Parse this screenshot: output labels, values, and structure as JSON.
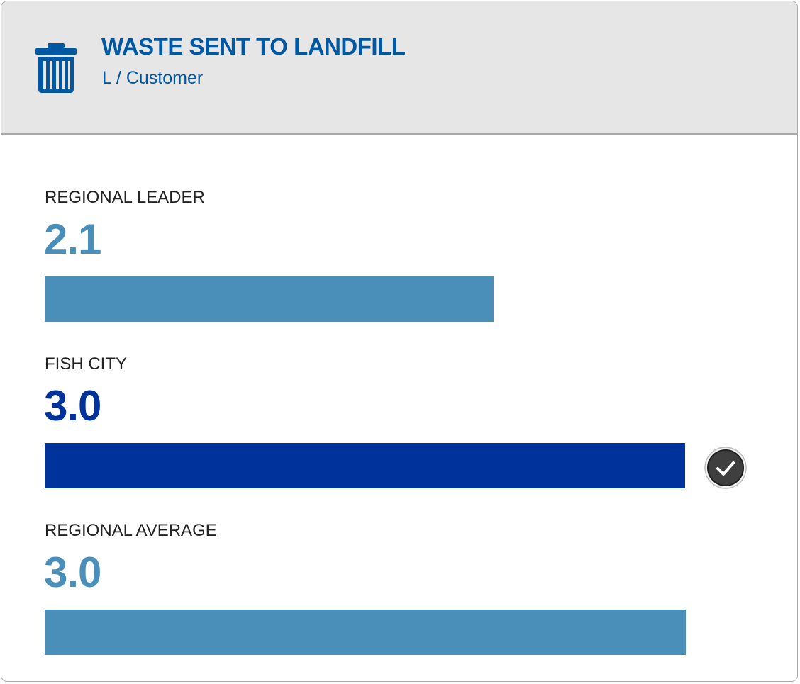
{
  "header": {
    "title": "WASTE SENT TO LANDFILL",
    "subtitle": "L / Customer",
    "icon": "trash-can-icon",
    "accent_color": "#0058a3"
  },
  "chart_data": {
    "type": "bar",
    "orientation": "horizontal",
    "title": "WASTE SENT TO LANDFILL",
    "unit": "L / Customer",
    "categories": [
      "REGIONAL LEADER",
      "FISH CITY",
      "REGIONAL AVERAGE"
    ],
    "values": [
      2.1,
      3.0,
      3.0
    ],
    "display_values": [
      "2.1",
      "3.0",
      "3.0"
    ],
    "colors": [
      "#4a8fba",
      "#00329b",
      "#4a8fba"
    ],
    "highlighted": "FISH CITY",
    "highlight_icon": "check-circle-icon",
    "xlim": [
      0,
      3.0
    ],
    "grid": false,
    "legend": "none"
  }
}
